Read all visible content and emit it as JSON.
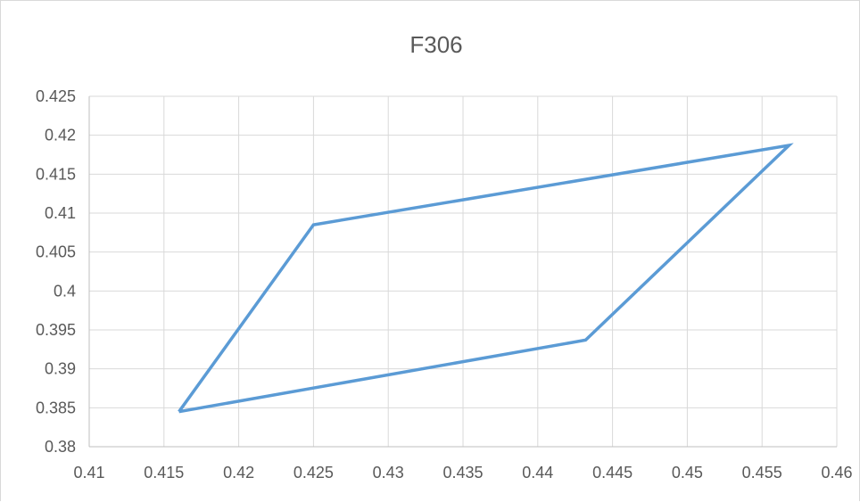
{
  "chart_data": {
    "type": "scatter",
    "title": "F306",
    "xlabel": "",
    "ylabel": "",
    "xlim": [
      0.41,
      0.46
    ],
    "ylim": [
      0.38,
      0.425
    ],
    "grid": true,
    "x_ticks": [
      "0.41",
      "0.415",
      "0.42",
      "0.425",
      "0.43",
      "0.435",
      "0.44",
      "0.445",
      "0.45",
      "0.455",
      "0.46"
    ],
    "y_ticks": [
      "0.425",
      "0.42",
      "0.415",
      "0.41",
      "0.405",
      "0.4",
      "0.395",
      "0.39",
      "0.385",
      "0.38"
    ],
    "series": [
      {
        "color": "#5b9bd5",
        "x": [
          0.416,
          0.425,
          0.4568,
          0.4432,
          0.416
        ],
        "y": [
          0.3845,
          0.4085,
          0.4187,
          0.3937,
          0.3845
        ]
      }
    ]
  }
}
